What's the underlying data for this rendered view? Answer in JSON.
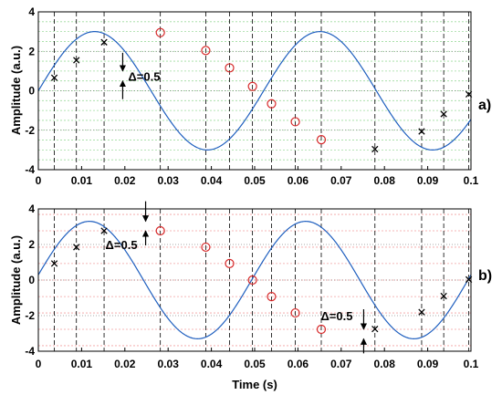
{
  "colors": {
    "curve": "#1f5fbf",
    "circle_marker": "#d62728",
    "cross_marker": "#000000",
    "hgrid_a": "#9fdc9f",
    "hgrid_b": "#f2a0a0"
  },
  "chart_data": [
    {
      "type": "line",
      "panel_label": "a)",
      "xlabel": "",
      "ylabel": "Amplitude (a.u.)",
      "xlim": [
        0,
        0.1
      ],
      "ylim": [
        -4,
        4
      ],
      "xticks": [
        "0",
        "0.01",
        "0.02",
        "0.03",
        "0.04",
        "0.05",
        "0.06",
        "0.07",
        "0.08",
        "0.09",
        "0.1"
      ],
      "yticks": [
        "-4",
        "-2",
        "0",
        "2",
        "4"
      ],
      "grid": "on",
      "signal": {
        "amplitude": 3,
        "frequency_hz": 19.2,
        "phase_rad": 0
      },
      "sample_times": [
        0.0037,
        0.0088,
        0.0152,
        0.0282,
        0.0387,
        0.0442,
        0.0495,
        0.0539,
        0.0594,
        0.0654,
        0.0778,
        0.0886,
        0.0937,
        0.0995
      ],
      "markers_cross": [
        {
          "x": 0.0037,
          "y": 0.66
        },
        {
          "x": 0.0088,
          "y": 1.55
        },
        {
          "x": 0.0152,
          "y": 2.46
        },
        {
          "x": 0.0778,
          "y": -2.96
        },
        {
          "x": 0.0886,
          "y": -2.06
        },
        {
          "x": 0.0937,
          "y": -1.18
        },
        {
          "x": 0.0995,
          "y": -0.18
        }
      ],
      "markers_circle": [
        {
          "x": 0.0282,
          "y": 2.95
        },
        {
          "x": 0.0387,
          "y": 2.04
        },
        {
          "x": 0.0442,
          "y": 1.16
        },
        {
          "x": 0.0495,
          "y": 0.22
        },
        {
          "x": 0.0539,
          "y": -0.66
        },
        {
          "x": 0.0594,
          "y": -1.57
        },
        {
          "x": 0.0654,
          "y": -2.48
        }
      ],
      "quant_levels": [
        -3.5,
        -3,
        -2.5,
        -2,
        -1.5,
        -1,
        -0.5,
        0,
        0.5,
        1,
        1.5,
        2,
        2.5,
        3,
        3.5
      ],
      "annotations": [
        {
          "text": "Δ=0.5",
          "x": 0.0195,
          "y_top": 1.0,
          "y_bottom": 0.5
        }
      ]
    },
    {
      "type": "line",
      "panel_label": "b)",
      "xlabel": "Time (s)",
      "ylabel": "Amplitude (a.u.)",
      "xlim": [
        0,
        0.1
      ],
      "ylim": [
        -4,
        4
      ],
      "xticks": [
        "0",
        "0.01",
        "0.02",
        "0.03",
        "0.04",
        "0.05",
        "0.06",
        "0.07",
        "0.08",
        "0.09",
        "0.1"
      ],
      "yticks": [
        "-4",
        "-2",
        "0",
        "2",
        "4"
      ],
      "grid": "on",
      "signal": {
        "amplitude": 3.3,
        "frequency_hz": 20,
        "phase_rad": 0.088
      },
      "sample_times": [
        0.0037,
        0.0088,
        0.0152,
        0.0282,
        0.0387,
        0.0442,
        0.0495,
        0.0539,
        0.0594,
        0.0654,
        0.0778,
        0.0886,
        0.0937,
        0.0995
      ],
      "markers_cross": [
        {
          "x": 0.0037,
          "y": 0.93
        },
        {
          "x": 0.0088,
          "y": 1.85
        },
        {
          "x": 0.0152,
          "y": 2.77
        },
        {
          "x": 0.0778,
          "y": -2.75
        },
        {
          "x": 0.0886,
          "y": -1.8
        },
        {
          "x": 0.0937,
          "y": -0.9
        },
        {
          "x": 0.0995,
          "y": 0.03
        }
      ],
      "markers_circle": [
        {
          "x": 0.0282,
          "y": 2.77
        },
        {
          "x": 0.0387,
          "y": 1.85
        },
        {
          "x": 0.0442,
          "y": 0.93
        },
        {
          "x": 0.0495,
          "y": 0.0
        },
        {
          "x": 0.0539,
          "y": -0.93
        },
        {
          "x": 0.0594,
          "y": -1.85
        },
        {
          "x": 0.0654,
          "y": -2.77
        }
      ],
      "quant_levels": [
        -3.69,
        -2.77,
        -1.85,
        -0.93,
        0,
        0.93,
        1.85,
        2.77,
        3.69
      ],
      "annotations": [
        {
          "text": "Δ=0.5",
          "x": 0.0248,
          "y_top": 3.3,
          "y_bottom": 2.77
        },
        {
          "text": "Δ=0.5",
          "x": 0.0752,
          "y_top": -2.77,
          "y_bottom": -3.3
        }
      ]
    }
  ]
}
